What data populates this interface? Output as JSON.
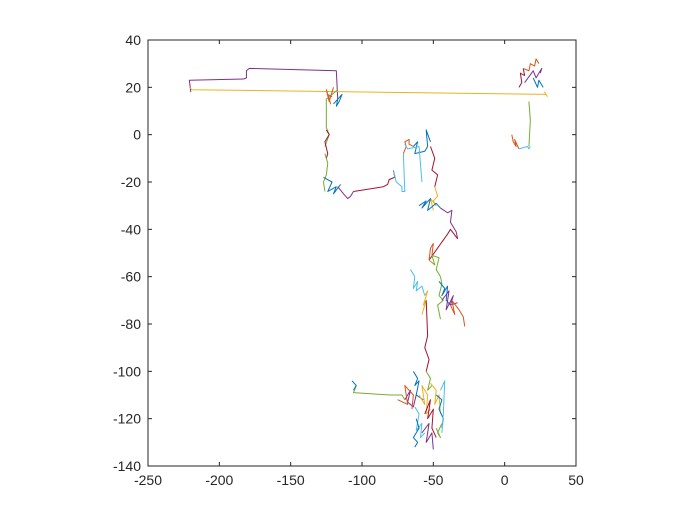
{
  "chart_data": {
    "type": "line",
    "title": "",
    "xlabel": "",
    "ylabel": "",
    "xlim": [
      -250,
      50
    ],
    "ylim": [
      -140,
      40
    ],
    "xticks": [
      -250,
      -200,
      -150,
      -100,
      -50,
      0,
      50
    ],
    "yticks": [
      -140,
      -120,
      -100,
      -80,
      -60,
      -40,
      -20,
      0,
      20,
      40
    ],
    "xtick_labels": [
      "-250",
      "-200",
      "-150",
      "-100",
      "-50",
      "0",
      "50"
    ],
    "ytick_labels": [
      "-140",
      "-120",
      "-100",
      "-80",
      "-60",
      "-40",
      "-20",
      "0",
      "20",
      "40"
    ],
    "grid": false,
    "legend": "none",
    "colors": [
      "#0072BD",
      "#D95319",
      "#EDB120",
      "#7E2F8E",
      "#77AC30",
      "#4DBEEE",
      "#A2142F"
    ],
    "series": [
      {
        "color_index": 3,
        "x": [
          -220,
          -221,
          -183,
          -181,
          -181,
          -179,
          -118,
          -117
        ],
        "y": [
          18,
          23,
          23.5,
          24,
          27,
          28,
          27,
          15
        ]
      },
      {
        "color_index": 2,
        "x": [
          -221,
          -219,
          29,
          28,
          30
        ],
        "y": [
          20,
          19,
          17,
          18,
          16
        ]
      },
      {
        "color_index": 4,
        "x": [
          -117,
          -125,
          -125,
          -123,
          -126
        ],
        "y": [
          19,
          15,
          3,
          0,
          -5
        ]
      },
      {
        "color_index": 1,
        "x": [
          -120,
          -123,
          -125,
          -122,
          -124,
          -121
        ],
        "y": [
          20,
          14,
          19,
          13,
          17,
          16
        ]
      },
      {
        "color_index": 0,
        "x": [
          -120,
          -114,
          -116,
          -118,
          -117
        ],
        "y": [
          13,
          17,
          14,
          12,
          15
        ]
      },
      {
        "color_index": 6,
        "x": [
          -125,
          -123,
          -126,
          -124,
          -125
        ],
        "y": [
          2,
          0,
          -3,
          -8,
          -10
        ]
      },
      {
        "color_index": 4,
        "x": [
          -126,
          -124,
          -125,
          -127,
          -126
        ],
        "y": [
          -8,
          -12,
          -17,
          -20,
          -24
        ]
      },
      {
        "color_index": 0,
        "x": [
          -127,
          -121,
          -124,
          -118,
          -120,
          -115
        ],
        "y": [
          -18,
          -20,
          -24,
          -22,
          -25,
          -21
        ]
      },
      {
        "color_index": 3,
        "x": [
          -117,
          -113,
          -110,
          -108,
          -106
        ],
        "y": [
          -22,
          -25,
          -27,
          -26,
          -24
        ]
      },
      {
        "color_index": 6,
        "x": [
          -106,
          -85,
          -82,
          -81,
          -77,
          -78
        ],
        "y": [
          -24,
          -22,
          -21,
          -19,
          -18,
          -15
        ]
      },
      {
        "color_index": 5,
        "x": [
          -78,
          -76,
          -72,
          -72,
          -70,
          -71
        ],
        "y": [
          -15,
          -20,
          -22,
          -24,
          -24,
          -8
        ]
      },
      {
        "color_index": 1,
        "x": [
          -71,
          -69,
          -70,
          -67,
          -67,
          -64
        ],
        "y": [
          -8,
          -5,
          -3,
          -2,
          -4,
          -5
        ]
      },
      {
        "color_index": 0,
        "x": [
          -64,
          -61,
          -63,
          -56,
          -54,
          -55,
          -52
        ],
        "y": [
          -5,
          -3,
          -8,
          -7,
          -5,
          2,
          -3
        ]
      },
      {
        "color_index": 5,
        "x": [
          -70,
          -68,
          -60,
          -58
        ],
        "y": [
          -4,
          -6,
          -5,
          -20
        ]
      },
      {
        "color_index": 6,
        "x": [
          -52,
          -49,
          -51,
          -47,
          -49
        ],
        "y": [
          -5,
          -10,
          -15,
          -17,
          -22
        ]
      },
      {
        "color_index": 2,
        "x": [
          -49,
          -47,
          -50,
          -48,
          -52,
          -50
        ],
        "y": [
          -22,
          -26,
          -28,
          -30,
          -27,
          -32
        ]
      },
      {
        "color_index": 0,
        "x": [
          -60,
          -55,
          -58,
          -52,
          -54,
          -48,
          -45
        ],
        "y": [
          -30,
          -28,
          -31,
          -27,
          -32,
          -29,
          -31
        ]
      },
      {
        "color_index": 3,
        "x": [
          -45,
          -40,
          -37,
          -38,
          -34,
          -33
        ],
        "y": [
          -31,
          -33,
          -32,
          -37,
          -41,
          -44
        ]
      },
      {
        "color_index": 6,
        "x": [
          -33,
          -38,
          -40,
          -53
        ],
        "y": [
          -44,
          -40,
          -42,
          -53
        ]
      },
      {
        "color_index": 4,
        "x": [
          -53,
          -49,
          -51,
          -46,
          -48,
          -45
        ],
        "y": [
          -53,
          -55,
          -51,
          -52,
          -57,
          -60
        ]
      },
      {
        "color_index": 1,
        "x": [
          -53,
          -52,
          -50,
          -51
        ],
        "y": [
          -53,
          -48,
          -46,
          -51
        ]
      },
      {
        "color_index": 4,
        "x": [
          -45,
          -44,
          -46,
          -43,
          -47,
          -45
        ],
        "y": [
          -60,
          -63,
          -68,
          -70,
          -72,
          -78
        ]
      },
      {
        "color_index": 5,
        "x": [
          -66,
          -63,
          -64,
          -61,
          -62,
          -58,
          -56
        ],
        "y": [
          -57,
          -60,
          -65,
          -62,
          -66,
          -64,
          -68
        ]
      },
      {
        "color_index": 2,
        "x": [
          -56,
          -54,
          -57,
          -55,
          -58
        ],
        "y": [
          -68,
          -66,
          -72,
          -70,
          -76
        ]
      },
      {
        "color_index": 0,
        "x": [
          -46,
          -42,
          -44,
          -40,
          -41,
          -38
        ],
        "y": [
          -62,
          -65,
          -68,
          -64,
          -70,
          -72
        ]
      },
      {
        "color_index": 3,
        "x": [
          -44,
          -39,
          -41,
          -36,
          -38,
          -33
        ],
        "y": [
          -70,
          -66,
          -74,
          -68,
          -72,
          -71
        ]
      },
      {
        "color_index": 1,
        "x": [
          -38,
          -35,
          -37,
          -32,
          -29,
          -28
        ],
        "y": [
          -72,
          -76,
          -70,
          -74,
          -77,
          -81
        ]
      },
      {
        "color_index": 6,
        "x": [
          -55,
          -54,
          -56,
          -53,
          -55
        ],
        "y": [
          -70,
          -85,
          -90,
          -95,
          -100
        ]
      },
      {
        "color_index": 4,
        "x": [
          -55,
          -52,
          -54,
          -51
        ],
        "y": [
          -100,
          -103,
          -108,
          -106
        ]
      },
      {
        "color_index": 0,
        "x": [
          -64,
          -61,
          -63,
          -60,
          -62,
          -57
        ],
        "y": [
          -100,
          -103,
          -106,
          -104,
          -110,
          -112
        ]
      },
      {
        "color_index": 4,
        "x": [
          -104,
          -106,
          -80,
          -72,
          -70
        ],
        "y": [
          -106,
          -109,
          -110,
          -110,
          -112
        ]
      },
      {
        "color_index": 3,
        "x": [
          -70,
          -66,
          -68,
          -64,
          -62
        ],
        "y": [
          -112,
          -108,
          -113,
          -115,
          -110
        ]
      },
      {
        "color_index": 1,
        "x": [
          -75,
          -68,
          -70,
          -64,
          -65
        ],
        "y": [
          -112,
          -114,
          -106,
          -110,
          -116
        ]
      },
      {
        "color_index": 2,
        "x": [
          -60,
          -56,
          -58,
          -54,
          -55,
          -52
        ],
        "y": [
          -110,
          -114,
          -106,
          -110,
          -118,
          -116
        ]
      },
      {
        "color_index": 5,
        "x": [
          -63,
          -60,
          -62,
          -58,
          -59,
          -56
        ],
        "y": [
          -115,
          -118,
          -125,
          -122,
          -128,
          -126
        ]
      },
      {
        "color_index": 0,
        "x": [
          -62,
          -60,
          -64,
          -61,
          -63
        ],
        "y": [
          -120,
          -124,
          -128,
          -130,
          -132
        ]
      },
      {
        "color_index": 6,
        "x": [
          -56,
          -52,
          -54,
          -50,
          -51,
          -48
        ],
        "y": [
          -118,
          -112,
          -120,
          -116,
          -124,
          -128
        ]
      },
      {
        "color_index": 3,
        "x": [
          -58,
          -53,
          -55,
          -51,
          -50
        ],
        "y": [
          -126,
          -122,
          -130,
          -126,
          -133
        ]
      },
      {
        "color_index": 2,
        "x": [
          -52,
          -48,
          -49,
          -46,
          -45
        ],
        "y": [
          -105,
          -108,
          -114,
          -110,
          -118
        ]
      },
      {
        "color_index": 0,
        "x": [
          -48,
          -44,
          -46,
          -43,
          -44
        ],
        "y": [
          -110,
          -112,
          -116,
          -120,
          -124
        ]
      },
      {
        "color_index": 5,
        "x": [
          -45,
          -42,
          -43,
          -44
        ],
        "y": [
          -108,
          -104,
          -118,
          -126
        ]
      },
      {
        "color_index": 4,
        "x": [
          -44,
          -47,
          -45,
          -48
        ],
        "y": [
          -122,
          -126,
          -128,
          -124
        ]
      },
      {
        "color_index": 0,
        "x": [
          -107,
          -104,
          -106
        ],
        "y": [
          -104,
          -106,
          -108
        ]
      },
      {
        "color_index": 1,
        "x": [
          5,
          6,
          8,
          7,
          10
        ],
        "y": [
          0,
          -3,
          -5,
          -2,
          -6
        ]
      },
      {
        "color_index": 5,
        "x": [
          10,
          16,
          17,
          18
        ],
        "y": [
          -6,
          -5,
          -6,
          -5
        ]
      },
      {
        "color_index": 4,
        "x": [
          17,
          18,
          17
        ],
        "y": [
          -5,
          6,
          14
        ]
      },
      {
        "color_index": 6,
        "x": [
          10,
          12,
          11,
          14,
          13
        ],
        "y": [
          20,
          22,
          26,
          25,
          28
        ]
      },
      {
        "color_index": 1,
        "x": [
          13,
          17,
          18,
          21,
          22,
          24
        ],
        "y": [
          28,
          27,
          30,
          29,
          32,
          30
        ]
      },
      {
        "color_index": 3,
        "x": [
          14,
          20,
          22,
          26,
          25
        ],
        "y": [
          22,
          27,
          24,
          28,
          26
        ]
      },
      {
        "color_index": 0,
        "x": [
          20,
          23,
          24,
          27
        ],
        "y": [
          24,
          20,
          23,
          20
        ]
      }
    ]
  }
}
